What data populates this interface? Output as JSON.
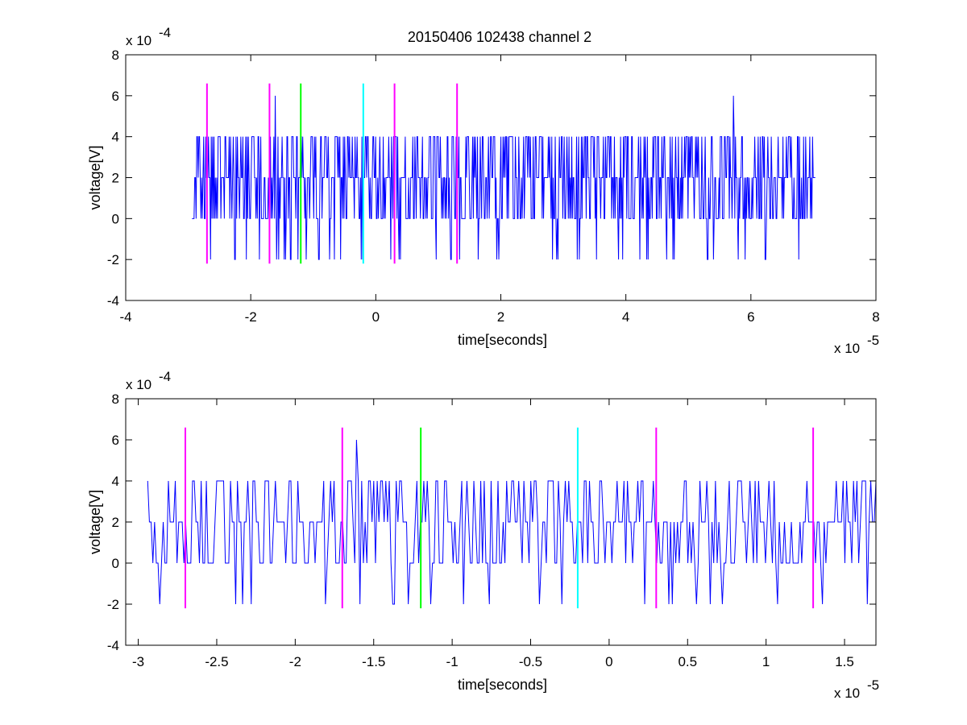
{
  "colors": {
    "signal": "#0000ff",
    "marker_magenta": "#ff00ff",
    "marker_green": "#00ff00",
    "marker_cyan": "#00ffff",
    "axes": "#000000"
  },
  "chart_data": [
    {
      "type": "line",
      "title": "20150406 102438 channel 2",
      "xlabel": "time[seconds]",
      "ylabel": "voltage[V]",
      "x_exponent": "x 10",
      "x_exponent_power": "-5",
      "y_exponent": "x 10",
      "y_exponent_power": "-4",
      "xlim": [
        -4e-05,
        8e-05
      ],
      "ylim": [
        -0.0004,
        0.0008
      ],
      "xticks": [
        -4e-05,
        -2e-05,
        0,
        2e-05,
        4e-05,
        6e-05,
        8e-05
      ],
      "xtick_labels": [
        "-4",
        "-2",
        "0",
        "2",
        "4",
        "6",
        "8"
      ],
      "yticks": [
        -0.0004,
        -0.0002,
        0,
        0.0002,
        0.0004,
        0.0006,
        0.0008
      ],
      "ytick_labels": [
        "-4",
        "-2",
        "0",
        "2",
        "4",
        "6",
        "8"
      ],
      "grid": false,
      "signal": {
        "x_start": -2.94e-05,
        "x_end": 7.03e-05,
        "levels": [
          -0.0002,
          0,
          0.0002,
          0.0004
        ],
        "peaks": [
          {
            "x": -1.61e-05,
            "y": 0.0006
          },
          {
            "x": 5.72e-05,
            "y": 0.0006
          }
        ]
      },
      "markers": [
        {
          "x": -2.7e-05,
          "ymin": -0.00022,
          "ymax": 0.00066,
          "color": "#ff00ff"
        },
        {
          "x": -1.7e-05,
          "ymin": -0.00022,
          "ymax": 0.00066,
          "color": "#ff00ff"
        },
        {
          "x": -1.2e-05,
          "ymin": -0.00022,
          "ymax": 0.00066,
          "color": "#00ff00"
        },
        {
          "x": -2e-06,
          "ymin": -0.00022,
          "ymax": 0.00066,
          "color": "#00ffff"
        },
        {
          "x": 3e-06,
          "ymin": -0.00022,
          "ymax": 0.00066,
          "color": "#ff00ff"
        },
        {
          "x": 1.3e-05,
          "ymin": -0.00022,
          "ymax": 0.00066,
          "color": "#ff00ff"
        }
      ]
    },
    {
      "type": "line",
      "title": "",
      "xlabel": "time[seconds]",
      "ylabel": "voltage[V]",
      "x_exponent": "x 10",
      "x_exponent_power": "-5",
      "y_exponent": "x 10",
      "y_exponent_power": "-4",
      "xlim": [
        -3.08e-05,
        1.7e-05
      ],
      "ylim": [
        -0.0004,
        0.0008
      ],
      "xticks": [
        -3e-05,
        -2.5e-05,
        -2e-05,
        -1.5e-05,
        -1e-05,
        -5e-06,
        0,
        5e-06,
        1e-05,
        1.5e-05
      ],
      "xtick_labels": [
        "-3",
        "-2.5",
        "-2",
        "-1.5",
        "-1",
        "-0.5",
        "0",
        "0.5",
        "1",
        "1.5"
      ],
      "yticks": [
        -0.0004,
        -0.0002,
        0,
        0.0002,
        0.0004,
        0.0006,
        0.0008
      ],
      "ytick_labels": [
        "-4",
        "-2",
        "0",
        "2",
        "4",
        "6",
        "8"
      ],
      "grid": false,
      "signal": {
        "x_start": -2.94e-05,
        "x_end": 1.7e-05,
        "levels": [
          -0.0002,
          0,
          0.0002,
          0.0004
        ],
        "peaks": [
          {
            "x": -1.61e-05,
            "y": 0.0006
          }
        ]
      },
      "markers": [
        {
          "x": -2.7e-05,
          "ymin": -0.00022,
          "ymax": 0.00066,
          "color": "#ff00ff"
        },
        {
          "x": -1.7e-05,
          "ymin": -0.00022,
          "ymax": 0.00066,
          "color": "#ff00ff"
        },
        {
          "x": -1.2e-05,
          "ymin": -0.00022,
          "ymax": 0.00066,
          "color": "#00ff00"
        },
        {
          "x": -2e-06,
          "ymin": -0.00022,
          "ymax": 0.00066,
          "color": "#00ffff"
        },
        {
          "x": 3e-06,
          "ymin": -0.00022,
          "ymax": 0.00066,
          "color": "#ff00ff"
        },
        {
          "x": 1.3e-05,
          "ymin": -0.00022,
          "ymax": 0.00066,
          "color": "#ff00ff"
        }
      ]
    }
  ]
}
